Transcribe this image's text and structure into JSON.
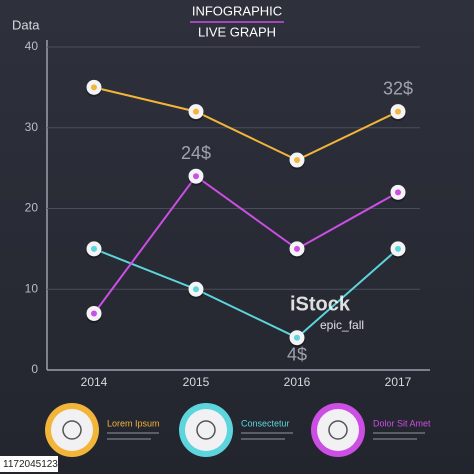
{
  "chart_data": {
    "type": "line",
    "title": "INFOGRAPHIC",
    "subtitle": "LIVE GRAPH",
    "y_label": "Data",
    "categories": [
      "2014",
      "2015",
      "2016",
      "2017"
    ],
    "series": [
      {
        "name": "Lorem Ipsum",
        "color": "#f2b53a",
        "values": [
          35,
          32,
          26,
          32
        ],
        "value_labels": [
          null,
          null,
          null,
          "32$"
        ]
      },
      {
        "name": "Consectetur",
        "color": "#5cd6dc",
        "values": [
          15,
          10,
          4,
          15
        ],
        "value_labels": [
          null,
          null,
          "4$",
          null
        ]
      },
      {
        "name": "Dolor Sit Amet",
        "color": "#cc4ee4",
        "values": [
          7,
          24,
          15,
          22
        ],
        "value_labels": [
          null,
          "24$",
          null,
          null
        ]
      }
    ],
    "ylim": [
      0,
      40
    ],
    "yticks": [
      0,
      10,
      20,
      30,
      40
    ],
    "grid": true
  },
  "watermark": {
    "brand": "iStock",
    "credit": "epic_fall",
    "id": "1172045123"
  }
}
